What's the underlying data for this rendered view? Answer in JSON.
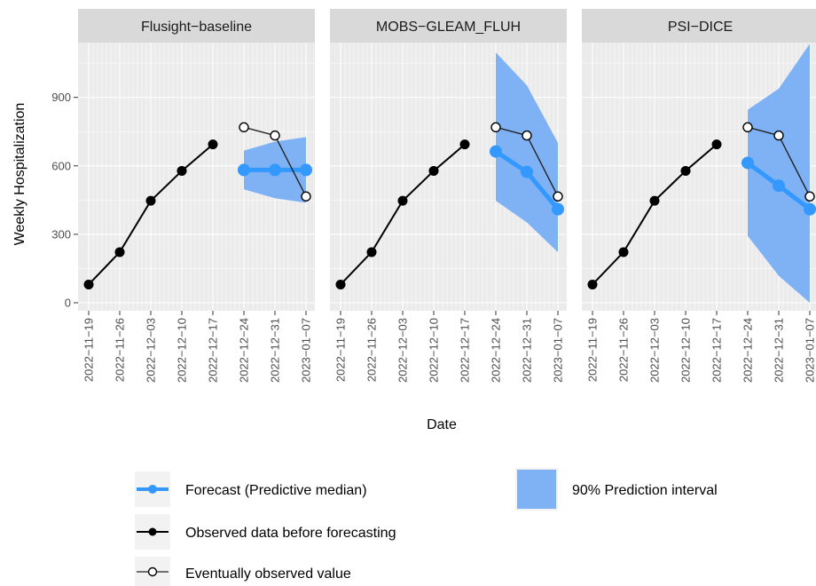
{
  "chart_data": {
    "type": "line",
    "xlabel": "Date",
    "ylabel": "Weekly Hospitalization",
    "ylim": [
      -35,
      1140
    ],
    "y_ticks": [
      0,
      300,
      600,
      900
    ],
    "x_ticks": [
      "2022-11-19",
      "2022-11-26",
      "2022-12-03",
      "2022-12-10",
      "2022-12-17",
      "2022-12-24",
      "2022-12-31",
      "2023-01-07"
    ],
    "grid": true,
    "observed": {
      "dates": [
        "2022-11-19",
        "2022-11-26",
        "2022-12-03",
        "2022-12-10",
        "2022-12-17"
      ],
      "values": [
        80,
        222,
        447,
        578,
        694
      ]
    },
    "eventual": {
      "dates": [
        "2022-12-24",
        "2022-12-31",
        "2023-01-07"
      ],
      "values": [
        769,
        733,
        466
      ]
    },
    "panels": [
      {
        "model": "Flusight−baseline",
        "forecast_dates": [
          "2022-12-24",
          "2022-12-31",
          "2023-01-07"
        ],
        "median": [
          582,
          582,
          582
        ],
        "lower": [
          497,
          458,
          438
        ],
        "upper": [
          667,
          706,
          726
        ]
      },
      {
        "model": "MOBS−GLEAM_FLUH",
        "forecast_dates": [
          "2022-12-24",
          "2022-12-31",
          "2023-01-07"
        ],
        "median": [
          663,
          573,
          410
        ],
        "lower": [
          447,
          352,
          222
        ],
        "upper": [
          1097,
          953,
          701
        ]
      },
      {
        "model": "PSI−DICE",
        "forecast_dates": [
          "2022-12-24",
          "2022-12-31",
          "2023-01-07"
        ],
        "median": [
          613,
          513,
          410
        ],
        "lower": [
          293,
          118,
          0
        ],
        "upper": [
          846,
          938,
          1135
        ]
      }
    ],
    "legend": {
      "forecast": "Forecast (Predictive median)",
      "observed": "Observed data before forecasting",
      "eventual": "Eventually observed value",
      "interval": "90% Prediction interval"
    },
    "colors": {
      "forecast": "#3399ff",
      "interval": "#7fb2f5",
      "observed": "#000000",
      "eventual": "#222222"
    }
  }
}
